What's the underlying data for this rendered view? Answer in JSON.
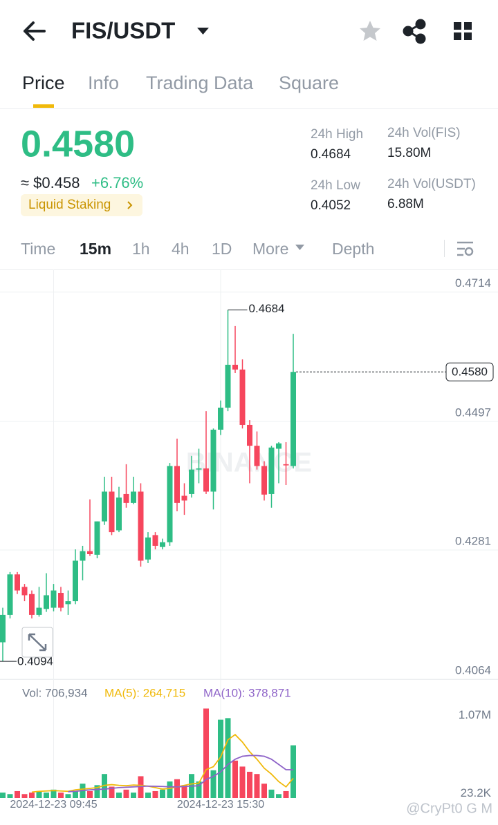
{
  "header": {
    "pair": "FIS/USDT"
  },
  "tabs": [
    "Price",
    "Info",
    "Trading Data",
    "Square"
  ],
  "price": {
    "last": "0.4580",
    "usd": "≈ $0.458",
    "change": "+6.76%",
    "tag": "Liquid Staking"
  },
  "stats": [
    {
      "label": "24h High",
      "value": "0.4684"
    },
    {
      "label": "24h Vol(FIS)",
      "value": "15.80M"
    },
    {
      "label": "24h Low",
      "value": "0.4052"
    },
    {
      "label": "24h Vol(USDT)",
      "value": "6.88M"
    }
  ],
  "intervals": [
    "Time",
    "15m",
    "1h",
    "4h",
    "1D",
    "More",
    "Depth"
  ],
  "chart": {
    "type": "candlestick",
    "watermark": "BINANCE",
    "categories": [
      null,
      null,
      null,
      null,
      null,
      null,
      null,
      "2024-12-23 09:45",
      null,
      null,
      null,
      null,
      null,
      null,
      null,
      null,
      null,
      null,
      null,
      null,
      null,
      null,
      null,
      null,
      null,
      null,
      null,
      null,
      null,
      null,
      "2024-12-23 15:30",
      null,
      null,
      null,
      null,
      null,
      null,
      null,
      null,
      null,
      null
    ],
    "open": [
      0.4126,
      0.4172,
      0.424,
      0.4219,
      0.4207,
      0.4172,
      0.4182,
      0.4184,
      0.4209,
      0.419,
      0.4195,
      0.4263,
      0.4279,
      0.4273,
      0.4329,
      0.4379,
      0.4314,
      0.4375,
      0.436,
      0.4379,
      0.4265,
      0.4306,
      0.4286,
      0.4294,
      0.4422,
      0.4372,
      0.4375,
      0.4416,
      0.4418,
      0.4379,
      0.4483,
      0.452,
      0.4592,
      0.4584,
      0.4491,
      0.4456,
      0.4422,
      0.4375,
      0.4451,
      0.4425,
      0.4422
    ],
    "high": [
      0.4184,
      0.4244,
      0.4244,
      0.4224,
      0.4213,
      0.4219,
      0.4242,
      0.4224,
      0.4219,
      0.4213,
      0.4282,
      0.4288,
      0.4366,
      0.4329,
      0.4404,
      0.4404,
      0.4387,
      0.4425,
      0.4404,
      0.4393,
      0.4311,
      0.4311,
      0.43,
      0.4427,
      0.4468,
      0.4393,
      0.4439,
      0.4451,
      0.4514,
      0.4485,
      0.4532,
      0.4684,
      0.4657,
      0.4601,
      0.4499,
      0.448,
      0.443,
      0.4456,
      0.4462,
      0.4462,
      0.4644
    ],
    "low": [
      0.4094,
      0.4166,
      0.4207,
      0.4195,
      0.4166,
      0.4169,
      0.4177,
      0.4178,
      0.4178,
      0.4172,
      0.419,
      0.423,
      0.4271,
      0.4267,
      0.4323,
      0.4306,
      0.4311,
      0.4352,
      0.4358,
      0.4253,
      0.4259,
      0.4282,
      0.4282,
      0.4288,
      0.4346,
      0.434,
      0.4369,
      0.4393,
      0.4375,
      0.4349,
      0.4474,
      0.4514,
      0.4578,
      0.4485,
      0.4393,
      0.4416,
      0.4364,
      0.4352,
      0.4393,
      0.439,
      0.4418
    ],
    "close": [
      0.4172,
      0.424,
      0.4213,
      0.4205,
      0.4172,
      0.4184,
      0.4205,
      0.4213,
      0.4184,
      0.4195,
      0.4263,
      0.4279,
      0.4274,
      0.4329,
      0.4379,
      0.4311,
      0.4369,
      0.436,
      0.4379,
      0.4263,
      0.4302,
      0.4288,
      0.4294,
      0.4422,
      0.436,
      0.4364,
      0.4416,
      0.4418,
      0.4379,
      0.4483,
      0.452,
      0.4592,
      0.4584,
      0.4491,
      0.4456,
      0.4422,
      0.4374,
      0.4453,
      0.446,
      0.4423,
      0.458
    ],
    "ylim": [
      0.4064,
      0.4752
    ],
    "yticks": [
      0.4714,
      0.4497,
      0.4281,
      0.4064
    ],
    "up_color": "#2ebd85",
    "down_color": "#f6465d",
    "grid": true,
    "volume": {
      "label": "Vol: 706,934",
      "ma5_label": "MA(5): 264,715",
      "ma10_label": "MA(10): 378,871",
      "ma5_color": "#f0b90b",
      "ma10_color": "#8e63c8",
      "values": [
        73000,
        53100,
        93000,
        53100,
        73000,
        93000,
        73000,
        112900,
        73000,
        53100,
        93000,
        192700,
        93000,
        172700,
        322300,
        152800,
        73000,
        112900,
        73000,
        292400,
        73000,
        93000,
        112900,
        222600,
        252500,
        172700,
        322300,
        222600,
        1199500,
        372100,
        1050000,
        1070900,
        501700,
        421900,
        352200,
        322300,
        192700,
        112900,
        53100,
        93000,
        706934
      ],
      "ma5": [
        null,
        null,
        null,
        null,
        80000,
        90000,
        95000,
        100000,
        95000,
        90000,
        110000,
        120000,
        130000,
        140000,
        170000,
        180000,
        170000,
        165000,
        175000,
        170000,
        160000,
        140000,
        120000,
        130000,
        150000,
        170000,
        190000,
        200000,
        380000,
        420000,
        550000,
        780000,
        850000,
        750000,
        620000,
        520000,
        400000,
        320000,
        220000,
        150000,
        264715
      ],
      "ma10": [
        null,
        null,
        null,
        null,
        null,
        null,
        null,
        null,
        null,
        85000,
        90000,
        100000,
        110000,
        115000,
        120000,
        130000,
        140000,
        145000,
        150000,
        155000,
        160000,
        158000,
        155000,
        150000,
        150000,
        155000,
        160000,
        165000,
        250000,
        290000,
        350000,
        450000,
        520000,
        560000,
        570000,
        570000,
        560000,
        520000,
        450000,
        380000,
        378871
      ],
      "ylim": [
        0,
        1250000
      ],
      "yticks": [
        {
          "value": 1070000,
          "label": "1.07M"
        },
        {
          "value": 23200,
          "label": "23.2K"
        }
      ]
    }
  },
  "footer": {
    "watermark": "@CryPt0 G M"
  }
}
